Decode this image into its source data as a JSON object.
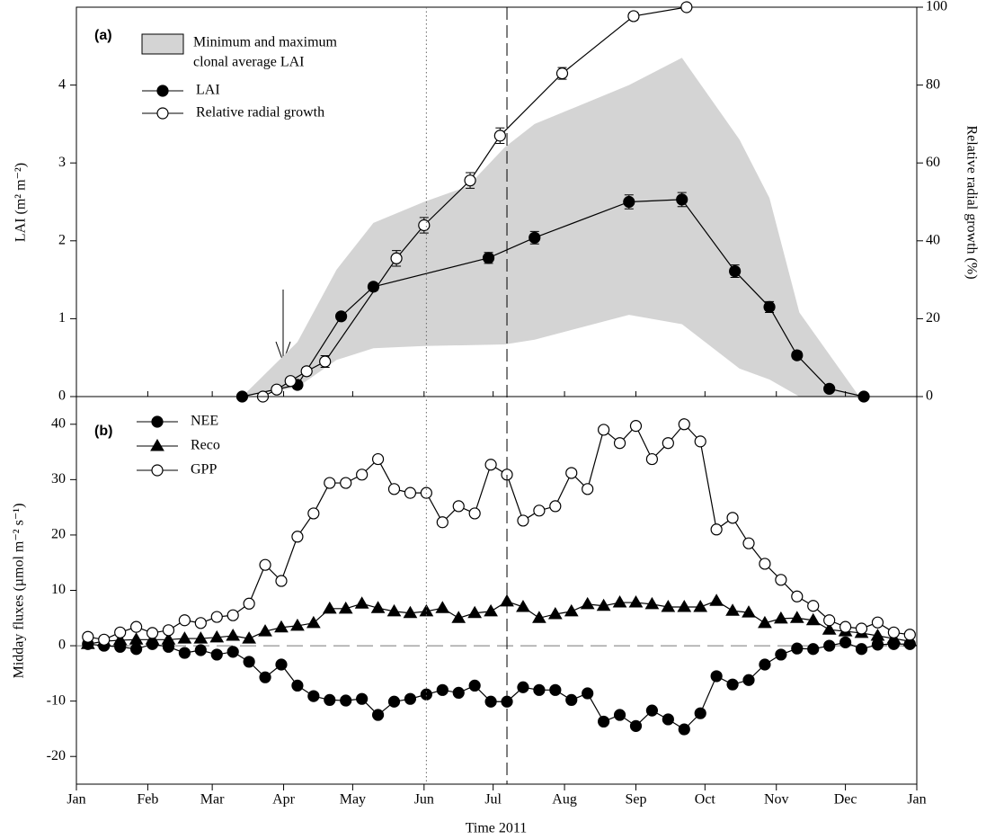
{
  "chart_data": [
    {
      "type": "line",
      "panel_label": "(a)",
      "ylabel": "LAI (m² m⁻²)",
      "y2label": "Relative radial growth (%)",
      "xlim": [
        0,
        365
      ],
      "ylim": [
        0,
        5
      ],
      "yticks": [
        0,
        1,
        2,
        3,
        4
      ],
      "y2lim": [
        0,
        100
      ],
      "y2ticks": [
        0,
        20,
        40,
        60,
        80,
        100
      ],
      "band": {
        "name": [
          "Minimum and maximum",
          "clonal average LAI"
        ],
        "color": "#d4d4d4",
        "x": [
          72,
          96,
          113,
          129,
          151,
          170,
          186,
          199,
          240,
          263,
          288,
          301,
          314,
          340
        ],
        "high": [
          0,
          0.7,
          1.63,
          2.23,
          2.5,
          2.7,
          3.2,
          3.5,
          4.0,
          4.35,
          3.3,
          2.55,
          1.08,
          0
        ],
        "low": [
          0,
          0.12,
          0.47,
          0.62,
          0.65,
          0.66,
          0.67,
          0.73,
          1.05,
          0.93,
          0.36,
          0.22,
          0,
          0
        ]
      },
      "series": [
        {
          "name": "LAI",
          "marker": "filled-circle",
          "color": "#000000",
          "x": [
            72,
            96,
            115,
            129,
            179,
            199,
            240,
            263,
            286,
            301,
            313,
            327,
            342
          ],
          "values": [
            0,
            0.15,
            1.03,
            1.41,
            1.78,
            2.04,
            2.5,
            2.53,
            1.61,
            1.15,
            0.53,
            0.1,
            0
          ],
          "errors": [
            0.02,
            0.05,
            0.04,
            0.05,
            0.07,
            0.08,
            0.09,
            0.09,
            0.08,
            0.07,
            0.05,
            0.03,
            0.01
          ]
        },
        {
          "name": "Relative radial growth",
          "marker": "open-circle",
          "color": "#000000",
          "axis": "y2",
          "x": [
            81,
            87,
            93,
            100,
            108,
            139,
            151,
            171,
            184,
            211,
            242,
            265
          ],
          "values": [
            0,
            1.8,
            4,
            6.5,
            9,
            35.5,
            44,
            55.5,
            67,
            83,
            97.7,
            100
          ],
          "errors": [
            0.3,
            0.5,
            0.8,
            1,
            1.5,
            2,
            2,
            2,
            2,
            1.5,
            1,
            0.5
          ]
        }
      ],
      "vlines": [
        {
          "x": 152,
          "style": "dotted"
        },
        {
          "x": 187,
          "style": "dashed"
        }
      ]
    },
    {
      "type": "line",
      "panel_label": "(b)",
      "xlabel": "Time 2011",
      "ylabel": "Midday fluxes (µmol m⁻² s⁻¹)",
      "xlim": [
        0,
        365
      ],
      "xticks": [
        {
          "value": 0,
          "label": "Jan"
        },
        {
          "value": 31,
          "label": "Feb"
        },
        {
          "value": 59,
          "label": "Mar"
        },
        {
          "value": 90,
          "label": "Apr"
        },
        {
          "value": 120,
          "label": "May"
        },
        {
          "value": 151,
          "label": "Jun"
        },
        {
          "value": 181,
          "label": "Jul"
        },
        {
          "value": 212,
          "label": "Aug"
        },
        {
          "value": 243,
          "label": "Sep"
        },
        {
          "value": 273,
          "label": "Oct"
        },
        {
          "value": 304,
          "label": "Nov"
        },
        {
          "value": 334,
          "label": "Dec"
        },
        {
          "value": 365,
          "label": "Jan"
        }
      ],
      "ylim": [
        -25,
        45
      ],
      "yticks": [
        -20,
        -10,
        0,
        10,
        20,
        30,
        40
      ],
      "hlines": [
        0
      ],
      "x": [
        5,
        12,
        19,
        26,
        33,
        40,
        47,
        54,
        61,
        68,
        75,
        82,
        89,
        96,
        103,
        110,
        117,
        124,
        131,
        138,
        145,
        152,
        159,
        166,
        173,
        180,
        187,
        194,
        201,
        208,
        215,
        222,
        229,
        236,
        243,
        250,
        257,
        264,
        271,
        278,
        285,
        292,
        299,
        306,
        313,
        320,
        327,
        334,
        341,
        348,
        355,
        362
      ],
      "series": [
        {
          "name": "NEE",
          "marker": "filled-circle",
          "color": "#000000",
          "values": [
            0.3,
            0,
            -0.2,
            -0.6,
            0.3,
            -0.2,
            -1.3,
            -0.8,
            -1.6,
            -1.1,
            -2.9,
            -5.7,
            -3.4,
            -7.2,
            -9.1,
            -9.8,
            -9.9,
            -9.6,
            -12.5,
            -10.1,
            -9.6,
            -8.8,
            -8.0,
            -8.5,
            -7.2,
            -10.1,
            -10.1,
            -7.5,
            -8.0,
            -8.0,
            -9.8,
            -8.6,
            -13.7,
            -12.5,
            -14.5,
            -11.7,
            -13.3,
            -15.1,
            -12.2,
            -5.5,
            -7.0,
            -6.2,
            -3.4,
            -1.6,
            -0.5,
            -0.6,
            0,
            0.6,
            -0.6,
            0.2,
            0.3,
            0.3
          ]
        },
        {
          "name": "Reco",
          "marker": "triangle",
          "color": "#000000",
          "values": [
            0.3,
            0.8,
            1.0,
            1.1,
            1.1,
            1.1,
            1.3,
            1.3,
            1.5,
            1.8,
            1.3,
            2.6,
            3.3,
            3.6,
            4.1,
            6.7,
            6.7,
            7.6,
            6.8,
            6.2,
            5.9,
            6.2,
            6.8,
            5.0,
            5.9,
            6.2,
            8.0,
            7.0,
            5.0,
            5.7,
            6.2,
            7.5,
            7.2,
            7.8,
            7.8,
            7.5,
            7.0,
            7.0,
            7.0,
            8.1,
            6.3,
            6.0,
            4.1,
            4.9,
            5.0,
            4.6,
            2.9,
            2.6,
            2.3,
            1.8,
            1.3,
            0.8
          ]
        },
        {
          "name": "GPP",
          "marker": "open-circle",
          "color": "#000000",
          "values": [
            1.6,
            1.1,
            2.4,
            3.4,
            2.3,
            2.8,
            4.6,
            4.1,
            5.2,
            5.5,
            7.6,
            14.6,
            11.7,
            19.7,
            23.9,
            29.4,
            29.4,
            30.9,
            33.7,
            28.3,
            27.6,
            27.6,
            22.3,
            25.2,
            23.9,
            32.7,
            30.9,
            22.6,
            24.4,
            25.2,
            31.2,
            28.3,
            39.0,
            36.6,
            39.7,
            33.7,
            36.6,
            40.0,
            36.9,
            21.0,
            23.1,
            18.5,
            14.8,
            11.9,
            8.9,
            7.2,
            4.6,
            3.4,
            3.1,
            4.2,
            2.4,
            2.0
          ]
        }
      ]
    }
  ]
}
